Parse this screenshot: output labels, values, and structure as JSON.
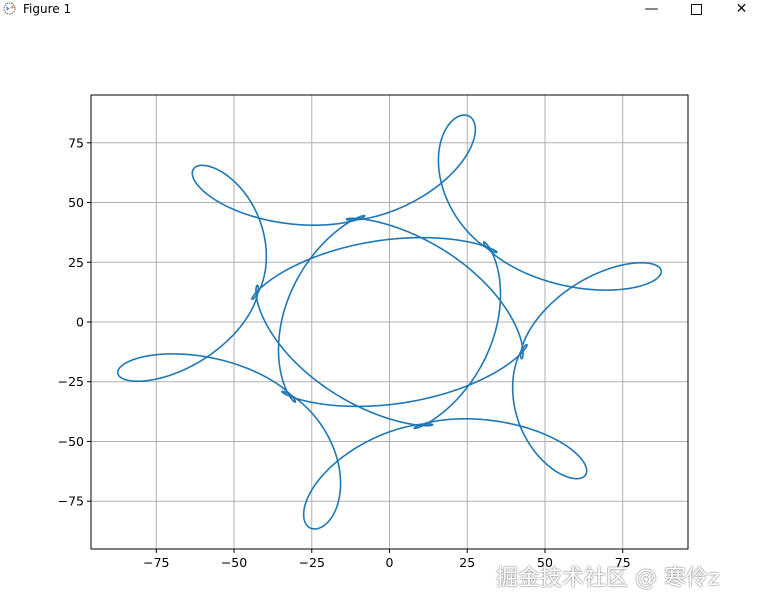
{
  "window": {
    "title": "Figure 1",
    "icon": "matplotlib-icon",
    "controls": [
      "minimize-icon",
      "maximize-icon",
      "close-icon"
    ]
  },
  "watermark": "掘金技术社区 @ 寒伶z",
  "chart_data": {
    "type": "line",
    "title": "",
    "xlabel": "",
    "ylabel": "",
    "xlim": [
      -96,
      96
    ],
    "ylim": [
      -95,
      95
    ],
    "xticks": [
      -75,
      -50,
      -25,
      0,
      25,
      50,
      75
    ],
    "yticks": [
      -75,
      -50,
      -25,
      0,
      25,
      50,
      75
    ],
    "xtick_labels": [
      "−75",
      "−50",
      "−25",
      "0",
      "25",
      "50",
      "75"
    ],
    "ytick_labels": [
      "−75",
      "−50",
      "−25",
      "0",
      "25",
      "50",
      "75"
    ],
    "grid": true,
    "series_color": "#1f77b4",
    "curve": {
      "kind": "parametric-spirograph",
      "symmetry": "6-fold",
      "components": [
        {
          "amplitude": 48,
          "frequency": 1,
          "phase_deg": 74
        },
        {
          "amplitude": 28,
          "frequency": -5,
          "phase_deg": 74
        },
        {
          "amplitude": 14,
          "frequency": 13,
          "phase_deg": 74
        }
      ]
    }
  }
}
